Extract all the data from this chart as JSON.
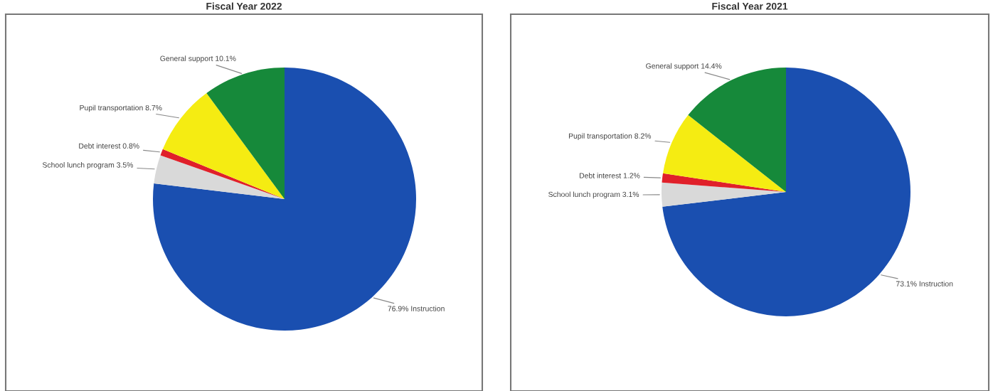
{
  "chart_data": [
    {
      "type": "pie",
      "title": "Fiscal Year 2022",
      "categories": [
        "76.9% Instruction",
        "School lunch program 3.5%",
        "Debt interest 0.8%",
        "Pupil transportation 8.7%",
        "General support 10.1%"
      ],
      "values": [
        76.9,
        3.5,
        0.8,
        8.7,
        10.1
      ],
      "colors": [
        "#1a4fb0",
        "#d9d9d9",
        "#e0202a",
        "#f5ec12",
        "#16893a"
      ],
      "legend": false
    },
    {
      "type": "pie",
      "title": "Fiscal Year 2021",
      "categories": [
        "73.1% Instruction",
        "School lunch program 3.1%",
        "Debt interest 1.2%",
        "Pupil transportation 8.2%",
        "General support 14.4%"
      ],
      "values": [
        73.1,
        3.1,
        1.2,
        8.2,
        14.4
      ],
      "colors": [
        "#1a4fb0",
        "#d9d9d9",
        "#e0202a",
        "#f5ec12",
        "#16893a"
      ],
      "legend": false
    }
  ]
}
